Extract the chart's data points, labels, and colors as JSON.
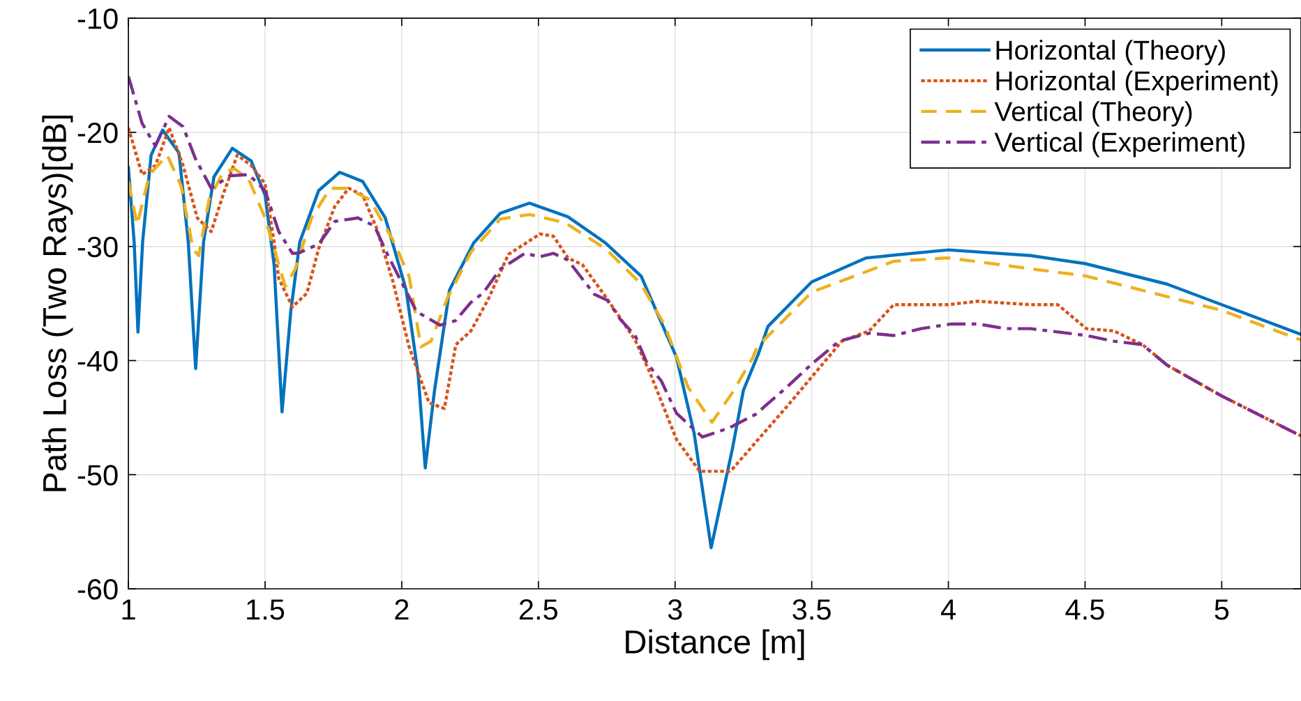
{
  "chart_data": {
    "type": "line",
    "xlabel": "Distance [m]",
    "ylabel": "Path Loss (Two Rays)[dB]",
    "xlim": [
      1,
      5.29
    ],
    "ylim": [
      -60,
      -10
    ],
    "xticks": [
      1,
      1.5,
      2,
      2.5,
      3,
      3.5,
      4,
      4.5,
      5
    ],
    "yticks": [
      -60,
      -50,
      -40,
      -30,
      -20,
      -10
    ],
    "grid": true,
    "legend": "top right",
    "marker": "none",
    "series": [
      {
        "name": "Horizontal (Theory)",
        "color": "#0072bd",
        "line_style": "solid",
        "x": [
          1.0,
          1.021,
          1.035,
          1.052,
          1.083,
          1.125,
          1.185,
          1.219,
          1.246,
          1.275,
          1.313,
          1.38,
          1.449,
          1.5,
          1.533,
          1.562,
          1.594,
          1.627,
          1.696,
          1.773,
          1.857,
          1.94,
          2.016,
          2.06,
          2.086,
          2.12,
          2.175,
          2.263,
          2.36,
          2.467,
          2.608,
          2.746,
          2.876,
          3.005,
          3.07,
          3.132,
          3.21,
          3.25,
          3.305,
          3.34,
          3.5,
          3.7,
          4.0,
          4.3,
          4.5,
          4.8,
          5.0,
          5.29
        ],
        "values": [
          -23.1,
          -29.6,
          -37.5,
          -29.6,
          -22.0,
          -19.8,
          -21.8,
          -29.6,
          -40.7,
          -29.6,
          -23.9,
          -21.4,
          -22.5,
          -25.5,
          -31.6,
          -44.5,
          -35.7,
          -29.6,
          -25.1,
          -23.5,
          -24.3,
          -27.5,
          -33.8,
          -41.2,
          -49.4,
          -42.6,
          -33.8,
          -29.7,
          -27.1,
          -26.2,
          -27.4,
          -29.7,
          -32.6,
          -39.7,
          -46.4,
          -56.4,
          -47.7,
          -42.6,
          -39.4,
          -37.0,
          -33.1,
          -31.0,
          -30.3,
          -30.8,
          -31.5,
          -33.3,
          -35.1,
          -37.7
        ]
      },
      {
        "name": "Horizontal (Experiment)",
        "color": "#d95319",
        "line_style": "dotted",
        "x": [
          1.0,
          1.05,
          1.099,
          1.149,
          1.2,
          1.252,
          1.303,
          1.346,
          1.398,
          1.449,
          1.5,
          1.533,
          1.55,
          1.6,
          1.653,
          1.696,
          1.755,
          1.806,
          1.857,
          1.908,
          1.967,
          2.027,
          2.1,
          2.156,
          2.198,
          2.253,
          2.317,
          2.39,
          2.506,
          2.555,
          2.608,
          2.661,
          2.746,
          2.854,
          2.907,
          3.005,
          3.09,
          3.2,
          3.21,
          3.41,
          3.61,
          3.71,
          3.8,
          4.0,
          4.107,
          4.3,
          4.4,
          4.505,
          4.605,
          4.71,
          4.8,
          5.0,
          5.29
        ],
        "values": [
          -19.6,
          -23.7,
          -22.9,
          -19.6,
          -22.9,
          -27.5,
          -28.7,
          -25.5,
          -22.0,
          -22.9,
          -24.5,
          -29.6,
          -32.8,
          -35.3,
          -34.1,
          -30.2,
          -26.5,
          -24.9,
          -25.5,
          -28.4,
          -33.0,
          -38.8,
          -43.7,
          -44.2,
          -38.6,
          -37.4,
          -34.6,
          -30.7,
          -28.9,
          -29.1,
          -31.0,
          -31.6,
          -34.4,
          -38.2,
          -41.0,
          -46.9,
          -49.7,
          -49.7,
          -49.5,
          -44.0,
          -38.3,
          -37.4,
          -35.1,
          -35.1,
          -34.8,
          -35.1,
          -35.1,
          -37.2,
          -37.4,
          -38.6,
          -40.4,
          -43.1,
          -46.6
        ]
      },
      {
        "name": "Vertical (Theory)",
        "color": "#edb120",
        "line_style": "dashed",
        "x": [
          1.0,
          1.032,
          1.077,
          1.142,
          1.193,
          1.236,
          1.257,
          1.295,
          1.346,
          1.389,
          1.44,
          1.5,
          1.543,
          1.574,
          1.61,
          1.67,
          1.738,
          1.8,
          1.883,
          1.967,
          2.027,
          2.07,
          2.107,
          2.166,
          2.253,
          2.36,
          2.467,
          2.596,
          2.746,
          2.876,
          2.962,
          3.047,
          3.135,
          3.21,
          3.285,
          3.3,
          3.5,
          3.8,
          4.0,
          4.505,
          5.0,
          5.29
        ],
        "values": [
          -24.3,
          -28.1,
          -23.7,
          -22.0,
          -24.7,
          -30.2,
          -30.8,
          -25.9,
          -23.5,
          -23.2,
          -24.1,
          -27.5,
          -31.0,
          -33.5,
          -32.0,
          -27.5,
          -24.9,
          -24.9,
          -25.9,
          -29.4,
          -32.6,
          -38.8,
          -38.3,
          -34.6,
          -30.5,
          -27.6,
          -27.2,
          -27.9,
          -30.2,
          -33.3,
          -36.9,
          -42.3,
          -45.4,
          -42.8,
          -39.7,
          -38.8,
          -34.0,
          -31.3,
          -31.0,
          -32.6,
          -35.6,
          -38.2
        ]
      },
      {
        "name": "Vertical (Experiment)",
        "color": "#7e2f8e",
        "line_style": "dashdot",
        "x": [
          1.0,
          1.05,
          1.099,
          1.149,
          1.2,
          1.245,
          1.303,
          1.372,
          1.44,
          1.5,
          1.55,
          1.6,
          1.62,
          1.696,
          1.755,
          1.84,
          1.9,
          1.95,
          2.054,
          2.14,
          2.197,
          2.253,
          2.297,
          2.36,
          2.45,
          2.506,
          2.555,
          2.608,
          2.705,
          2.752,
          2.8,
          2.854,
          2.897,
          2.95,
          3.005,
          3.1,
          3.198,
          3.295,
          3.41,
          3.5,
          3.6,
          3.71,
          3.8,
          3.9,
          4.007,
          4.11,
          4.21,
          4.3,
          4.505,
          4.605,
          4.71,
          4.8,
          5.0,
          5.29
        ],
        "values": [
          -15.1,
          -19.2,
          -21.2,
          -18.6,
          -19.5,
          -22.3,
          -24.9,
          -23.8,
          -23.7,
          -25.1,
          -28.7,
          -30.6,
          -30.6,
          -29.8,
          -27.8,
          -27.5,
          -28.2,
          -30.8,
          -35.7,
          -36.9,
          -36.5,
          -34.9,
          -34.1,
          -32.0,
          -30.6,
          -30.9,
          -30.6,
          -31.2,
          -34.2,
          -34.7,
          -36.4,
          -37.8,
          -40.2,
          -41.8,
          -44.6,
          -46.7,
          -45.9,
          -44.7,
          -42.3,
          -40.3,
          -38.3,
          -37.6,
          -37.8,
          -37.2,
          -36.8,
          -36.8,
          -37.2,
          -37.2,
          -37.8,
          -38.3,
          -38.6,
          -40.4,
          -43.1,
          -46.6
        ]
      }
    ]
  }
}
